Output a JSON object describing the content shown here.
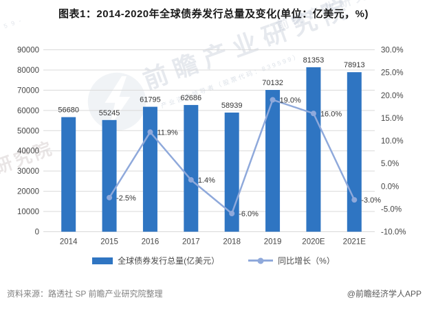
{
  "title": "图表1：2014-2020年全球债券发行总量及变化(单位：亿美元，%)",
  "chart_data": {
    "type": "bar",
    "subtype": "bar+line combo, dual axis",
    "categories": [
      "2014",
      "2015",
      "2016",
      "2017",
      "2018",
      "2019",
      "2020E",
      "2021E"
    ],
    "series": [
      {
        "name": "全球债券发行总量(亿美元）",
        "type": "bar",
        "axis": "left",
        "color": "#2F75C2",
        "values": [
          56680,
          55245,
          61795,
          62686,
          58939,
          70132,
          81353,
          78913
        ],
        "labels": [
          "56680",
          "55245",
          "61795",
          "62686",
          "58939",
          "70132",
          "81353",
          "78913"
        ]
      },
      {
        "name": "同比增长（%）",
        "type": "line",
        "axis": "right",
        "color": "#8FA9DB",
        "values": [
          null,
          -2.5,
          11.9,
          1.4,
          -6.0,
          19.0,
          16.0,
          -3.0
        ],
        "labels": [
          "",
          "-2.5%",
          "11.9%",
          "1.4%",
          "-6.0%",
          "19.0%",
          "16.0%",
          "-3.0%"
        ]
      }
    ],
    "left_axis": {
      "min": 0,
      "max": 90000,
      "step": 10000,
      "tick_labels": [
        "90000",
        "80000",
        "70000",
        "60000",
        "50000",
        "40000",
        "30000",
        "20000",
        "10000",
        "0"
      ]
    },
    "right_axis": {
      "min": -10,
      "max": 30,
      "step": 5,
      "tick_labels": [
        "30.0%",
        "25.0%",
        "20.0%",
        "15.0%",
        "10.0%",
        "5.0%",
        "0.0%",
        "-5.0%",
        "-10.0%"
      ]
    },
    "grid": true,
    "legend_position": "bottom"
  },
  "legend": {
    "items": [
      {
        "label": "全球债券发行总量(亿美元）"
      },
      {
        "label": "同比增长（%）"
      }
    ]
  },
  "footer": {
    "source": "资料来源：路透社 SP 前瞻产业研究院整理",
    "brand": "@前瞻经济学人APP"
  },
  "watermark": {
    "main": "前瞻产业研究院",
    "sub": "产业咨询领导者（股票代码：839599）",
    "fragment_top": "前瞻产业研究院",
    "fragment_bottom": "研究院",
    "fragment_corner": "5 9 -"
  },
  "colors": {
    "bar": "#2F75C2",
    "line": "#8FA9DB",
    "grid": "#D9D9D9",
    "axis_text": "#454545",
    "value_text": "#333333",
    "title_text": "#1A1A1A",
    "legend_text": "#4A4A4A",
    "source_text": "#808080",
    "brand_text": "#595959"
  }
}
